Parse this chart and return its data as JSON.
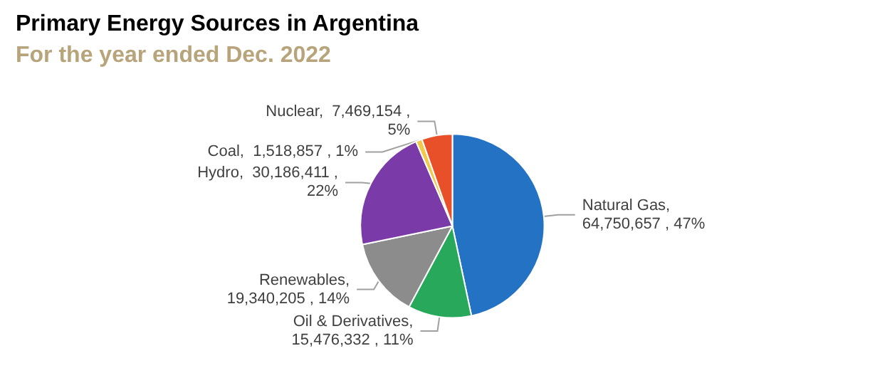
{
  "chart_data": {
    "type": "pie",
    "title": "Primary Energy Sources in Argentina",
    "subtitle": "For the year ended Dec. 2022",
    "categories": [
      "Natural Gas",
      "Oil & Derivatives",
      "Renewables",
      "Hydro",
      "Coal",
      "Nuclear"
    ],
    "values": [
      64750657,
      15476332,
      19340205,
      30186411,
      1518857,
      7469154
    ],
    "value_labels": [
      ",\n64,750,657 , 47%",
      ",\n15,476,332 , 11%",
      ",\n19,340,205 , 14%",
      ",  30,186,411 ,\n22%",
      ",  1,518,857 , 1%",
      ",  7,469,154 ,\n5%"
    ],
    "colors": [
      "#2372c4",
      "#27a85a",
      "#8c8c8c",
      "#7a3ba8",
      "#f2c94c",
      "#e8502a"
    ],
    "legend": false
  }
}
